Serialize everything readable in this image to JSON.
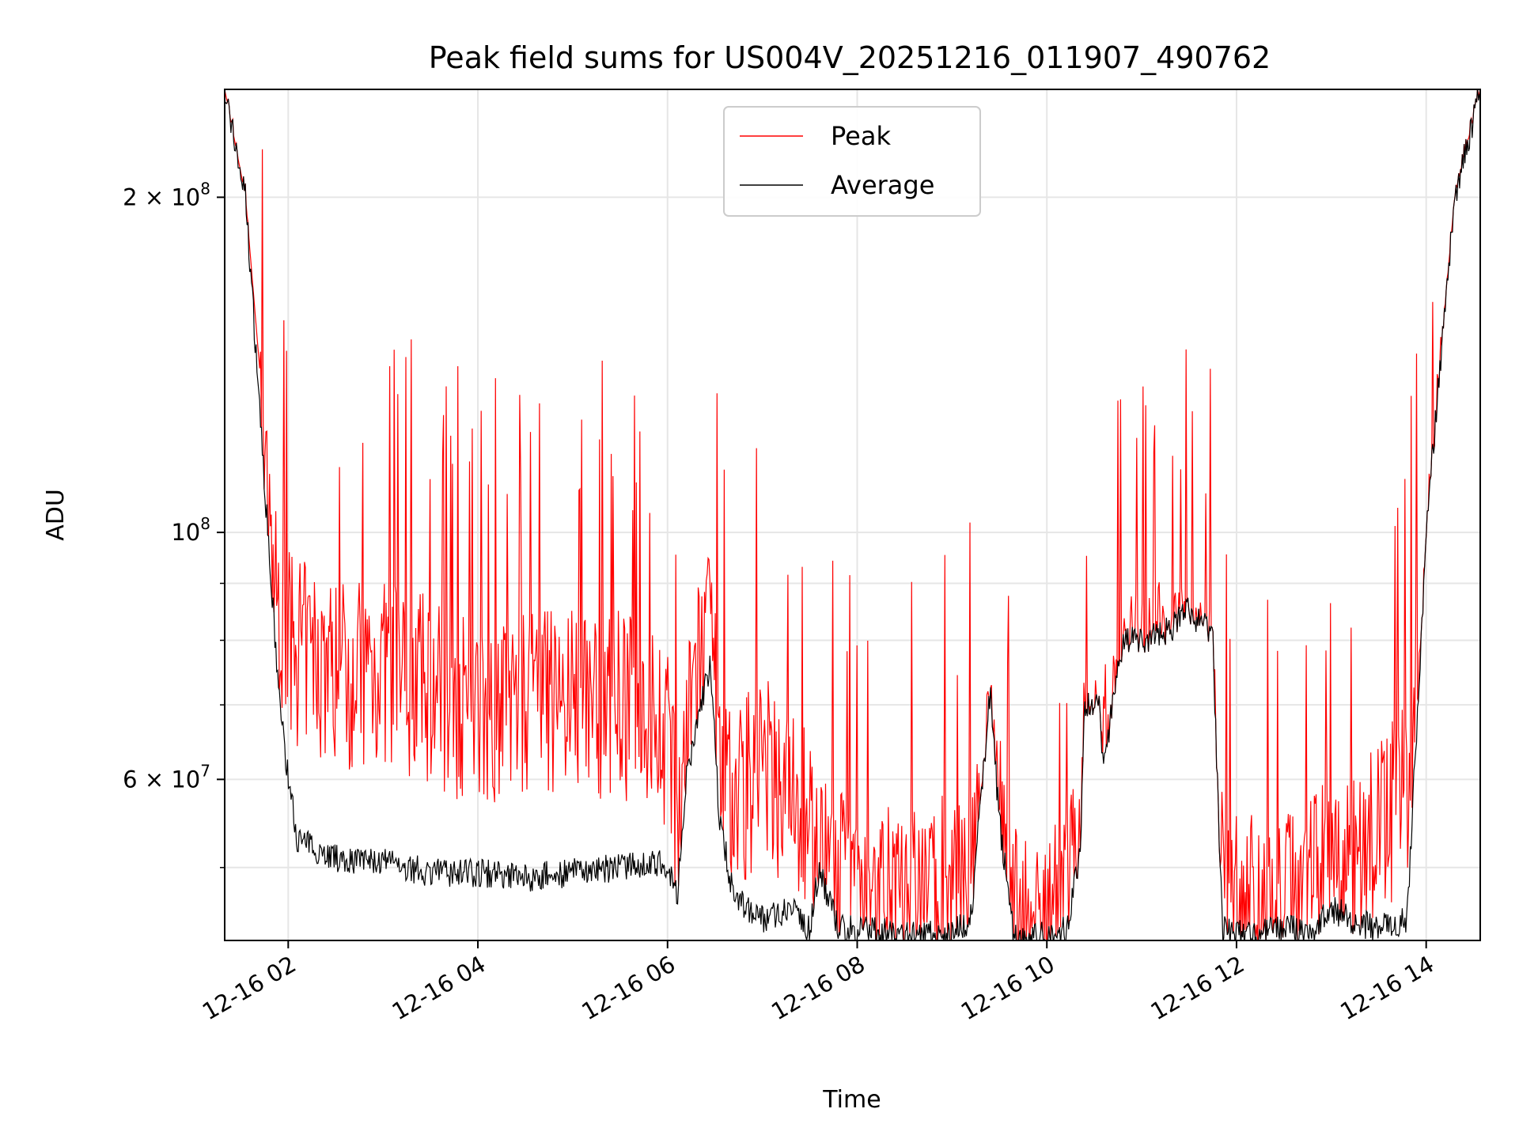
{
  "chart_data": {
    "type": "line",
    "title": "Peak field sums for US004V_20251216_011907_490762",
    "xlabel": "Time",
    "ylabel": "ADU",
    "yscale": "log",
    "ylim": [
      43000000,
      250000000
    ],
    "xlim_hours": [
      1.33,
      14.57
    ],
    "grid": true,
    "legend_position": "upper center",
    "x_ticks": [
      {
        "hour": 2,
        "label": "12-16 02"
      },
      {
        "hour": 4,
        "label": "12-16 04"
      },
      {
        "hour": 6,
        "label": "12-16 06"
      },
      {
        "hour": 8,
        "label": "12-16 08"
      },
      {
        "hour": 10,
        "label": "12-16 10"
      },
      {
        "hour": 12,
        "label": "12-16 12"
      },
      {
        "hour": 14,
        "label": "12-16 14"
      }
    ],
    "y_major_ticks": [
      {
        "value": 200000000,
        "mantissa": "2",
        "exp": "8"
      },
      {
        "value": 100000000,
        "mantissa": "",
        "exp": "8"
      },
      {
        "value": 60000000,
        "mantissa": "6",
        "exp": "7"
      }
    ],
    "y_minor_ticks": [
      50000000,
      70000000,
      80000000,
      90000000
    ],
    "series": [
      {
        "name": "Peak",
        "color": "#ff0000",
        "x_hours": [
          1.33,
          1.55,
          1.7,
          1.8,
          1.9,
          2.0,
          2.5,
          3.0,
          3.5,
          4.0,
          4.5,
          5.0,
          5.5,
          6.0,
          6.1,
          6.3,
          6.45,
          6.6,
          7.0,
          7.5,
          7.7,
          7.8,
          8.0,
          8.5,
          9.0,
          9.2,
          9.4,
          9.6,
          9.7,
          9.9,
          10.2,
          10.4,
          10.6,
          10.8,
          11.0,
          11.3,
          11.5,
          11.75,
          11.85,
          12.0,
          12.5,
          13.0,
          13.5,
          13.8,
          14.0,
          14.2,
          14.3,
          14.57
        ],
        "values": [
          250000000,
          200000000,
          140000000,
          110000000,
          95000000,
          90000000,
          85000000,
          85000000,
          82000000,
          78000000,
          80000000,
          80000000,
          80000000,
          75000000,
          60000000,
          85000000,
          90000000,
          65000000,
          70000000,
          62000000,
          55000000,
          55000000,
          55000000,
          52000000,
          55000000,
          58000000,
          70000000,
          55000000,
          50000000,
          50000000,
          52000000,
          70000000,
          72000000,
          82000000,
          85000000,
          85000000,
          86000000,
          80000000,
          55000000,
          52000000,
          53000000,
          56000000,
          60000000,
          68000000,
          100000000,
          160000000,
          200000000,
          250000000
        ]
      },
      {
        "name": "Average",
        "color": "#000000",
        "x_hours": [
          1.33,
          1.55,
          1.7,
          1.8,
          1.9,
          2.0,
          2.1,
          2.5,
          3.0,
          3.5,
          4.0,
          4.5,
          5.0,
          5.5,
          6.0,
          6.1,
          6.2,
          6.35,
          6.45,
          6.55,
          6.7,
          7.0,
          7.3,
          7.5,
          7.6,
          7.8,
          8.0,
          8.5,
          9.0,
          9.2,
          9.4,
          9.5,
          9.65,
          9.7,
          10.0,
          10.2,
          10.35,
          10.4,
          10.55,
          10.6,
          10.8,
          11.0,
          11.3,
          11.5,
          11.7,
          11.75,
          11.85,
          12.0,
          12.5,
          12.8,
          13.0,
          13.2,
          13.5,
          13.8,
          14.0,
          14.2,
          14.3,
          14.57
        ],
        "values": [
          250000000,
          200000000,
          130000000,
          95000000,
          72000000,
          60000000,
          53000000,
          51000000,
          50500000,
          49500000,
          49500000,
          49000000,
          49500000,
          50000000,
          50500000,
          47000000,
          60000000,
          70000000,
          76000000,
          55000000,
          47000000,
          45000000,
          46000000,
          44000000,
          50000000,
          44000000,
          44000000,
          43500000,
          43500000,
          45000000,
          72000000,
          55000000,
          43500000,
          43000000,
          43500000,
          44000000,
          51000000,
          70000000,
          70000000,
          62000000,
          80000000,
          80000000,
          82000000,
          85000000,
          82000000,
          80000000,
          44000000,
          43500000,
          44000000,
          44000000,
          46000000,
          45000000,
          44000000,
          45000000,
          100000000,
          160000000,
          200000000,
          250000000
        ]
      }
    ]
  }
}
